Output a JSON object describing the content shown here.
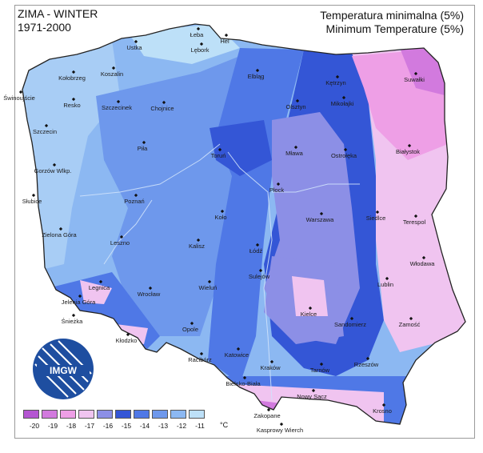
{
  "title_left": {
    "line1": "ZIMA - WINTER",
    "line2": "1971-2000"
  },
  "title_right": {
    "line1": "Temperatura minimalna (5%)",
    "line2": "Minimum Temperature (5%)"
  },
  "legend": {
    "unit": "°C",
    "values": [
      "-20",
      "-19",
      "-18",
      "-17",
      "-16",
      "-15",
      "-14",
      "-13",
      "-12",
      "-11"
    ],
    "colors": [
      "#b455d2",
      "#d27ade",
      "#ee9fe6",
      "#f0c4f0",
      "#8c8fe6",
      "#3456d6",
      "#4f78e6",
      "#6e98ec",
      "#8cb8f2",
      "#bde0f8"
    ]
  },
  "logo": {
    "text": "IMGW"
  },
  "cities": [
    {
      "name": "Łeba"
    },
    {
      "name": "Hel"
    },
    {
      "name": "Ustka"
    },
    {
      "name": "Lębork"
    },
    {
      "name": "Kołobrzeg"
    },
    {
      "name": "Koszalin"
    },
    {
      "name": "Elbląg"
    },
    {
      "name": "Kętrzyn"
    },
    {
      "name": "Suwałki"
    },
    {
      "name": "Świnoujście"
    },
    {
      "name": "Resko"
    },
    {
      "name": "Szczecinek"
    },
    {
      "name": "Chojnice"
    },
    {
      "name": "Olsztyn"
    },
    {
      "name": "Mikołajki"
    },
    {
      "name": "Szczecin"
    },
    {
      "name": "Piła"
    },
    {
      "name": "Toruń"
    },
    {
      "name": "Mława"
    },
    {
      "name": "Ostrołęka"
    },
    {
      "name": "Białystok"
    },
    {
      "name": "Gorzów Wlkp."
    },
    {
      "name": "Płock"
    },
    {
      "name": "Słubice"
    },
    {
      "name": "Poznań"
    },
    {
      "name": "Koło"
    },
    {
      "name": "Warszawa"
    },
    {
      "name": "Siedlce"
    },
    {
      "name": "Terespol"
    },
    {
      "name": "Zielona Góra"
    },
    {
      "name": "Leszno"
    },
    {
      "name": "Kalisz"
    },
    {
      "name": "Łódź"
    },
    {
      "name": "Włodawa"
    },
    {
      "name": "Sulejów"
    },
    {
      "name": "Legnica"
    },
    {
      "name": "Wrocław"
    },
    {
      "name": "Wieluń"
    },
    {
      "name": "Lublin"
    },
    {
      "name": "Jelenia Góra"
    },
    {
      "name": "Kielce"
    },
    {
      "name": "Śnieżka"
    },
    {
      "name": "Opole"
    },
    {
      "name": "Sandomierz"
    },
    {
      "name": "Zamość"
    },
    {
      "name": "Kłodzko"
    },
    {
      "name": "Racibórz"
    },
    {
      "name": "Katowice"
    },
    {
      "name": "Kraków"
    },
    {
      "name": "Tarnów"
    },
    {
      "name": "Rzeszów"
    },
    {
      "name": "Bielsko-Biała"
    },
    {
      "name": "Nowy Sącz"
    },
    {
      "name": "Krosno"
    },
    {
      "name": "Zakopane"
    },
    {
      "name": "Kasprowy Wierch"
    }
  ]
}
